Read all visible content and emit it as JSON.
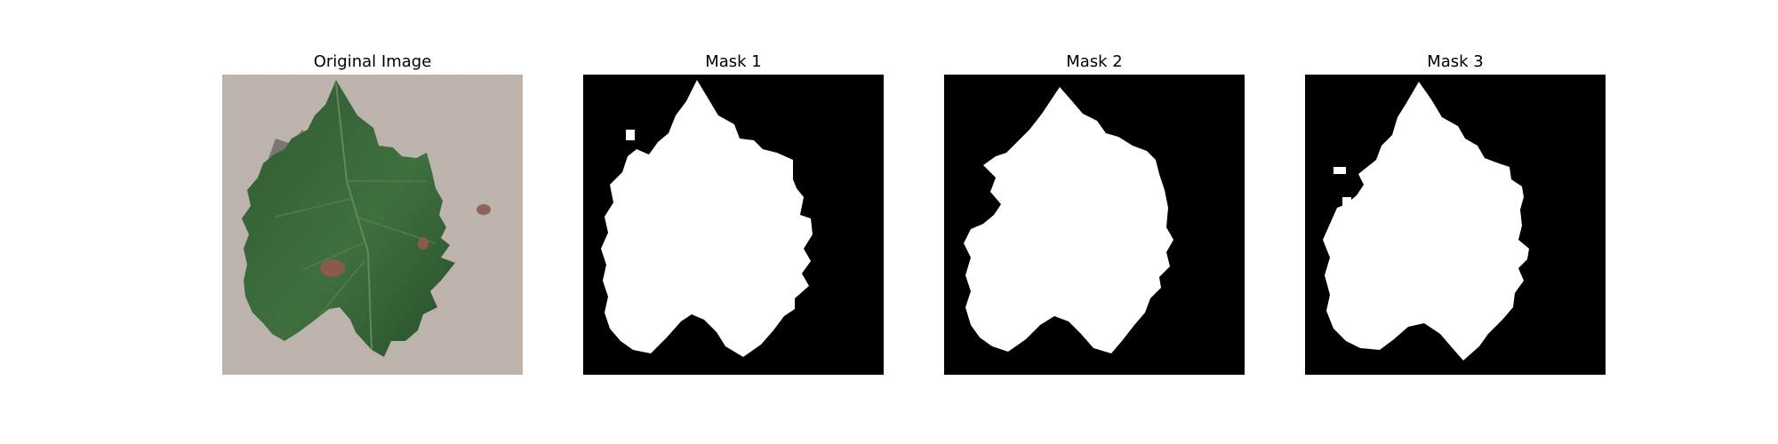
{
  "panels": [
    {
      "title": "Original Image",
      "icon": "leaf-photo"
    },
    {
      "title": "Mask 1",
      "icon": "leaf-mask"
    },
    {
      "title": "Mask 2",
      "icon": "leaf-mask"
    },
    {
      "title": "Mask 3",
      "icon": "leaf-mask"
    }
  ],
  "colors": {
    "background": "#ffffff",
    "mask_background": "#000000",
    "mask_foreground": "#ffffff",
    "photo_background": "#b7aea7",
    "leaf_dark": "#244a28",
    "leaf_mid": "#3b6b3a",
    "lesion": "#8a5a4e"
  }
}
